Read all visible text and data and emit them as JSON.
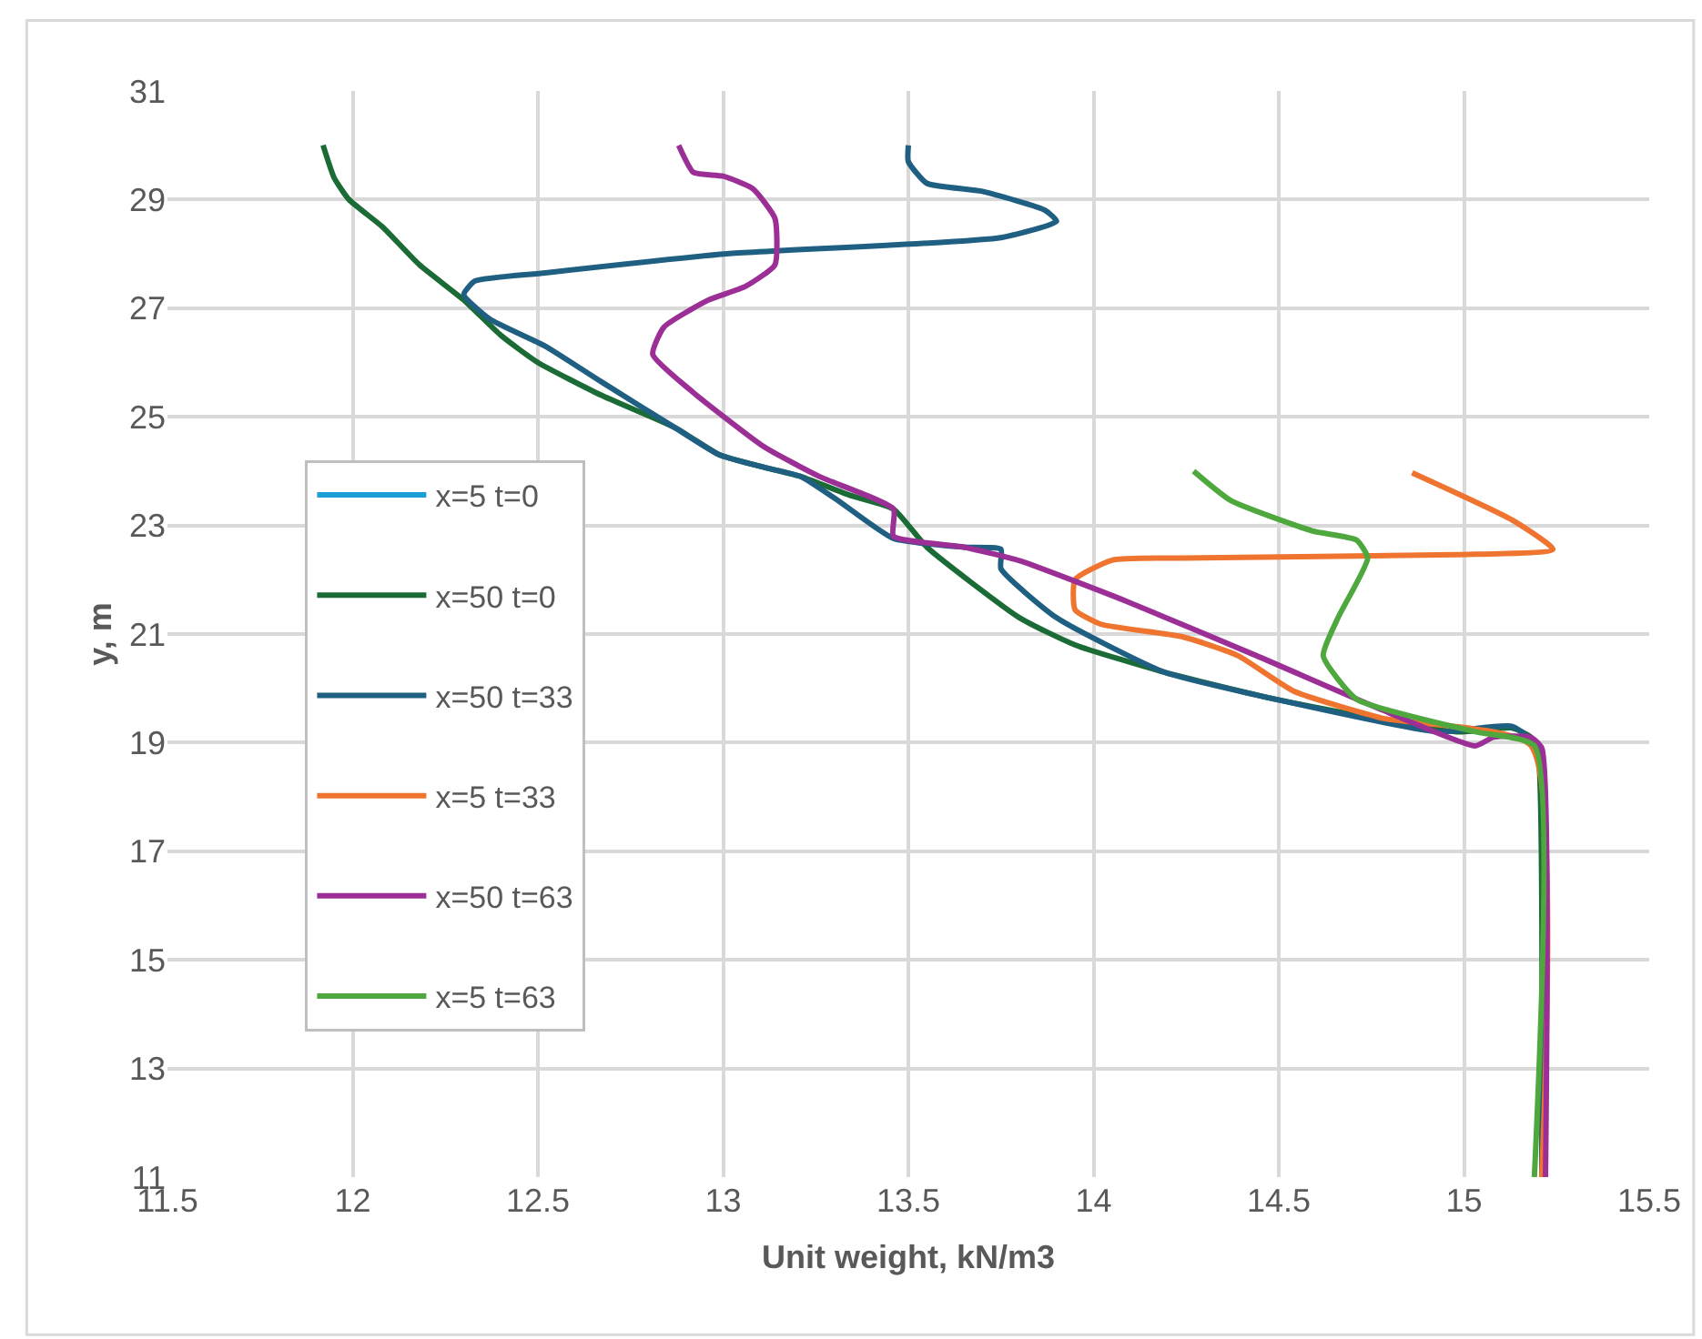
{
  "chart_data": {
    "type": "line",
    "xlabel": "Unit weight, kN/m3",
    "ylabel": "y, m",
    "xlim": [
      11.5,
      15.5
    ],
    "xticks": [
      11.5,
      12,
      12.5,
      13,
      13.5,
      14,
      14.5,
      15,
      15.5
    ],
    "ylim": [
      11,
      31
    ],
    "yticks": [
      11,
      13,
      15,
      17,
      19,
      21,
      23,
      25,
      27,
      29,
      31
    ],
    "grid": true,
    "legend": "left",
    "marker": "none",
    "line_style": "solid",
    "series": [
      {
        "name": "x=5 t=0",
        "color": "#1f9fd8",
        "x": [
          null
        ],
        "values": [
          null
        ]
      },
      {
        "name": "x=50 t=0",
        "color": "#1a6b35",
        "x": [
          11.92,
          11.95,
          11.99,
          12.08,
          12.18,
          12.3,
          12.4,
          12.5,
          12.67,
          12.87,
          12.99,
          13.11,
          13.21,
          13.34,
          13.46,
          13.55,
          13.8,
          13.95,
          14.19,
          14.49,
          14.98,
          15.13,
          15.18,
          15.2,
          15.21
        ],
        "values": [
          30.0,
          29.4,
          29.0,
          28.5,
          27.8,
          27.15,
          26.5,
          26.0,
          25.4,
          24.8,
          24.3,
          24.07,
          23.9,
          23.56,
          23.3,
          22.6,
          21.3,
          20.8,
          20.3,
          19.8,
          19.2,
          19.27,
          19.1,
          18.8,
          11
        ]
      },
      {
        "name": "x=50 t=33",
        "color": "#1f5f82",
        "x": [
          13.5,
          13.5,
          13.55,
          13.7,
          13.87,
          13.9,
          13.75,
          13.01,
          12.52,
          12.33,
          12.3,
          12.37,
          12.52,
          12.67,
          12.87,
          12.99,
          13.11,
          13.21,
          13.31,
          13.46,
          13.65,
          13.75,
          13.75,
          13.9,
          14.19,
          14.49,
          14.93,
          15.13,
          15.2,
          15.21
        ],
        "values": [
          30.0,
          29.7,
          29.3,
          29.15,
          28.8,
          28.6,
          28.3,
          28.0,
          27.65,
          27.5,
          27.25,
          26.8,
          26.3,
          25.65,
          24.8,
          24.3,
          24.07,
          23.9,
          23.46,
          22.76,
          22.6,
          22.56,
          22.2,
          21.3,
          20.3,
          19.8,
          19.2,
          19.3,
          18.9,
          11
        ]
      },
      {
        "name": "x=5 t=33",
        "color": "#ef7430",
        "x": [
          14.86,
          15.13,
          15.24,
          14.98,
          14.24,
          14.05,
          13.95,
          13.95,
          14.02,
          14.24,
          14.39,
          14.54,
          14.78,
          15.18,
          15.21
        ],
        "values": [
          23.97,
          23.1,
          22.56,
          22.46,
          22.4,
          22.36,
          22.0,
          21.45,
          21.18,
          20.95,
          20.6,
          19.95,
          19.45,
          18.95,
          11
        ]
      },
      {
        "name": "x=50 t=63",
        "color": "#9b2f96",
        "x": [
          12.88,
          12.92,
          13.0,
          13.08,
          13.14,
          13.14,
          13.06,
          12.96,
          12.84,
          12.81,
          12.91,
          13.11,
          13.26,
          13.46,
          13.46,
          13.65,
          13.8,
          14.09,
          14.44,
          14.78,
          15.03,
          15.08,
          15.18,
          15.21,
          15.22
        ],
        "values": [
          30.0,
          29.5,
          29.43,
          29.2,
          28.65,
          27.8,
          27.4,
          27.15,
          26.65,
          26.15,
          25.5,
          24.45,
          23.9,
          23.3,
          22.8,
          22.6,
          22.35,
          21.6,
          20.6,
          19.6,
          18.94,
          19.1,
          19.1,
          18.9,
          11
        ]
      },
      {
        "name": "x=5 t=63",
        "color": "#4ea83e",
        "x": [
          14.27,
          14.37,
          14.59,
          14.71,
          14.74,
          14.66,
          14.62,
          14.71,
          15.03,
          15.19,
          15.19
        ],
        "values": [
          24.0,
          23.46,
          22.9,
          22.73,
          22.4,
          21.3,
          20.6,
          19.8,
          19.2,
          18.94,
          11
        ]
      }
    ]
  }
}
